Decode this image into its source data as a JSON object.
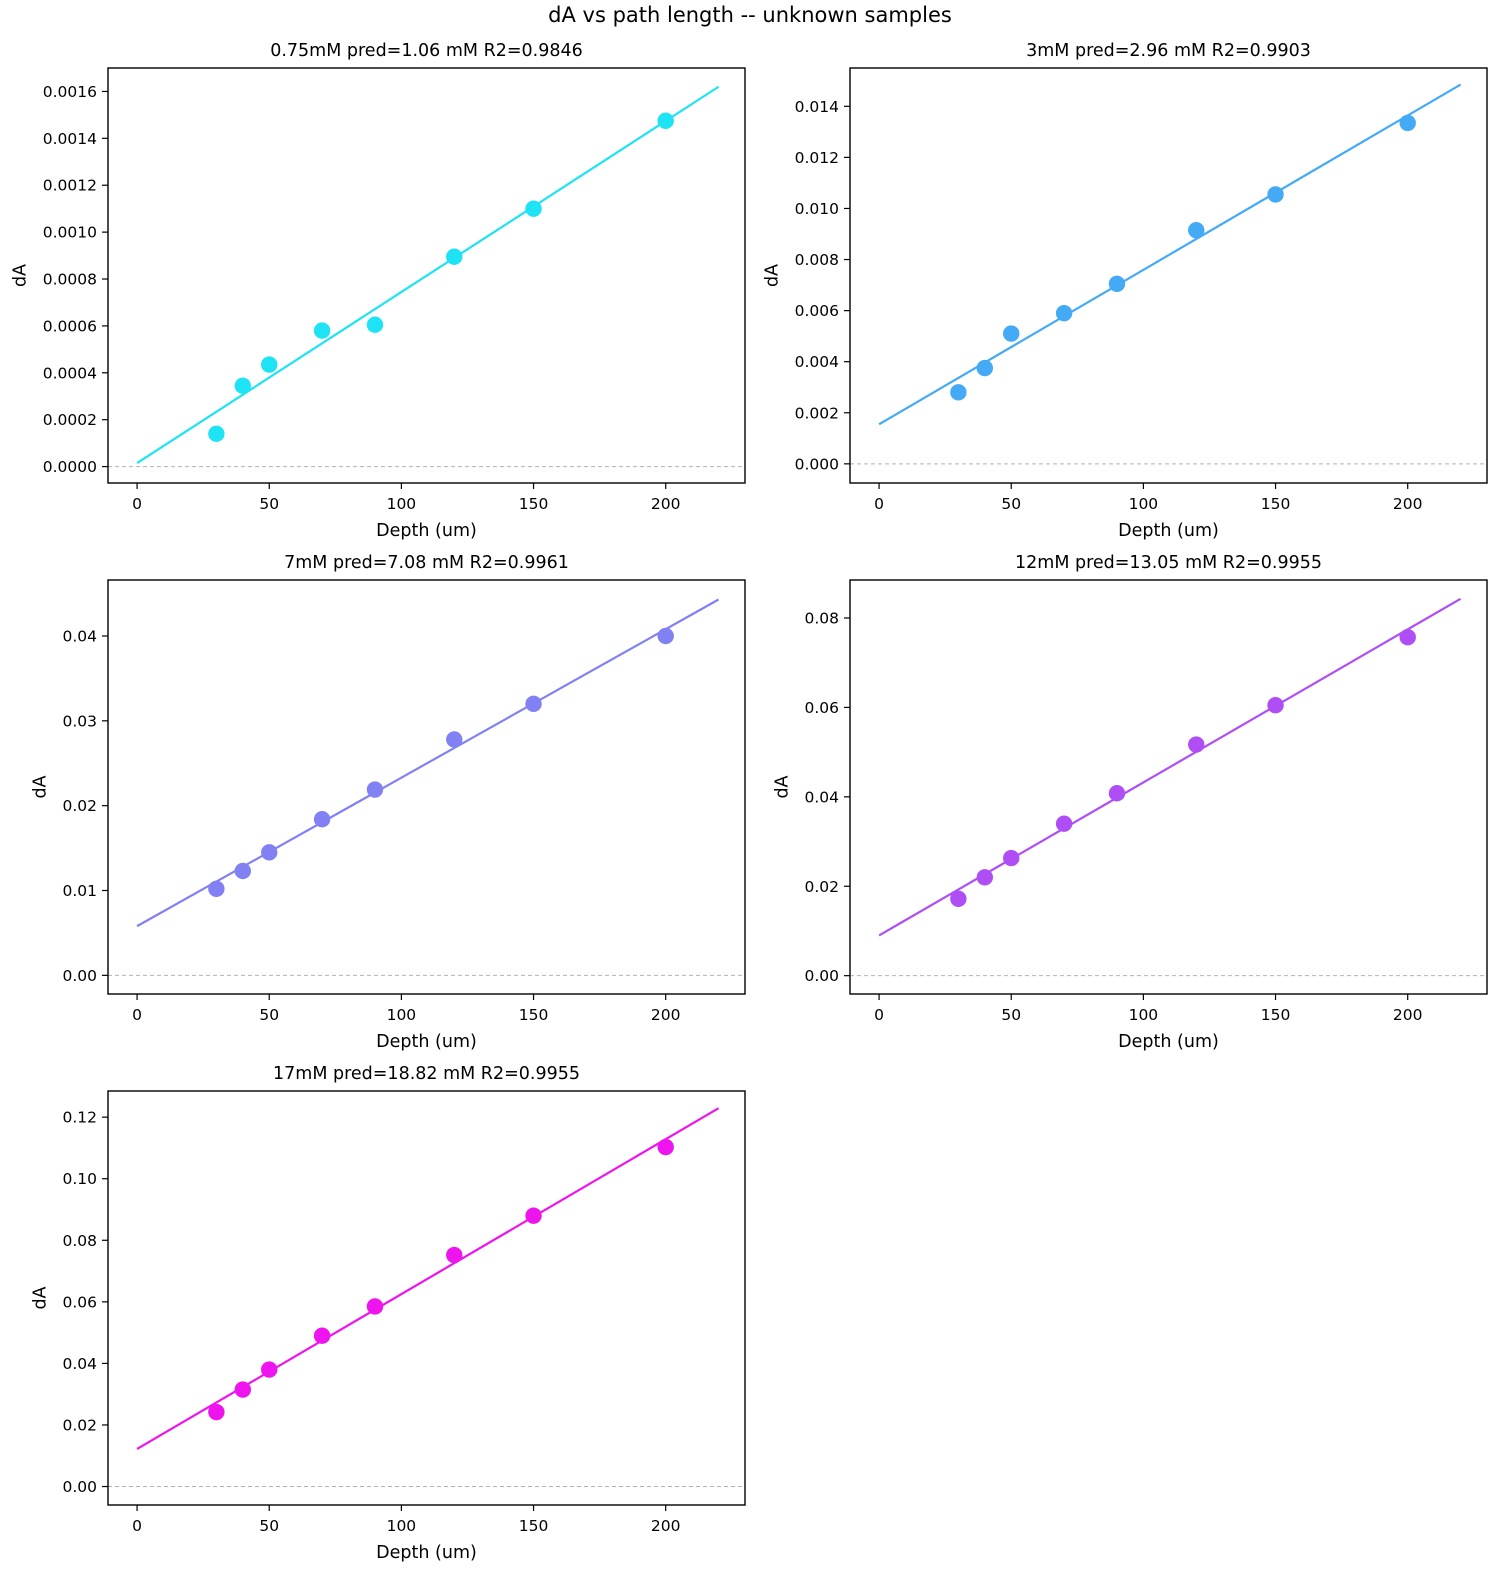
{
  "figure": {
    "title": "dA vs path length -- unknown samples"
  },
  "chart_data": [
    {
      "type": "scatter",
      "title": "0.75mM  pred=1.06 mM  R2=0.9846",
      "xlabel": "Depth (um)",
      "ylabel": "dA",
      "color": "#1ee3f5",
      "xlim": [
        -11,
        230
      ],
      "ylim": [
        -7e-05,
        0.0017
      ],
      "xticks": [
        0,
        50,
        100,
        150,
        200
      ],
      "xtick_labels": [
        "0",
        "50",
        "100",
        "150",
        "200"
      ],
      "yticks": [
        0,
        0.0002,
        0.0004,
        0.0006,
        0.0008,
        0.001,
        0.0012,
        0.0014,
        0.0016
      ],
      "ytick_labels": [
        "0.0000",
        "0.0002",
        "0.0004",
        "0.0006",
        "0.0008",
        "0.0010",
        "0.0012",
        "0.0014",
        "0.0016"
      ],
      "x": [
        30,
        40,
        50,
        70,
        90,
        120,
        150,
        200
      ],
      "y": [
        0.00014,
        0.000345,
        0.000435,
        0.00058,
        0.000605,
        0.000895,
        0.0011,
        0.001475
      ],
      "fit": {
        "x": [
          0,
          220
        ],
        "y": [
          1.5e-05,
          0.00162
        ]
      },
      "zero_line": true,
      "grid": false,
      "legend": "none"
    },
    {
      "type": "scatter",
      "title": "3mM  pred=2.96 mM  R2=0.9903",
      "xlabel": "Depth (um)",
      "ylabel": "dA",
      "color": "#44aaf6",
      "xlim": [
        -11,
        230
      ],
      "ylim": [
        -0.00075,
        0.0155
      ],
      "xticks": [
        0,
        50,
        100,
        150,
        200
      ],
      "xtick_labels": [
        "0",
        "50",
        "100",
        "150",
        "200"
      ],
      "yticks": [
        0,
        0.002,
        0.004,
        0.006,
        0.008,
        0.01,
        0.012,
        0.014
      ],
      "ytick_labels": [
        "0.000",
        "0.002",
        "0.004",
        "0.006",
        "0.008",
        "0.010",
        "0.012",
        "0.014"
      ],
      "x": [
        30,
        40,
        50,
        70,
        90,
        120,
        150,
        200
      ],
      "y": [
        0.0028,
        0.00375,
        0.0051,
        0.0059,
        0.00705,
        0.00915,
        0.01055,
        0.01335
      ],
      "fit": {
        "x": [
          0,
          220
        ],
        "y": [
          0.00155,
          0.01485
        ]
      },
      "zero_line": true,
      "grid": false,
      "legend": "none"
    },
    {
      "type": "scatter",
      "title": "7mM  pred=7.08 mM  R2=0.9961",
      "xlabel": "Depth (um)",
      "ylabel": "dA",
      "color": "#8181f4",
      "xlim": [
        -11,
        230
      ],
      "ylim": [
        -0.0022,
        0.0466
      ],
      "xticks": [
        0,
        50,
        100,
        150,
        200
      ],
      "xtick_labels": [
        "0",
        "50",
        "100",
        "150",
        "200"
      ],
      "yticks": [
        0,
        0.01,
        0.02,
        0.03,
        0.04
      ],
      "ytick_labels": [
        "0.00",
        "0.01",
        "0.02",
        "0.03",
        "0.04"
      ],
      "x": [
        30,
        40,
        50,
        70,
        90,
        120,
        150,
        200
      ],
      "y": [
        0.0102,
        0.0123,
        0.0145,
        0.0184,
        0.0219,
        0.0278,
        0.032,
        0.04
      ],
      "fit": {
        "x": [
          0,
          220
        ],
        "y": [
          0.0058,
          0.0443
        ]
      },
      "zero_line": true,
      "grid": false,
      "legend": "none"
    },
    {
      "type": "scatter",
      "title": "12mM  pred=13.05 mM  R2=0.9955",
      "xlabel": "Depth (um)",
      "ylabel": "dA",
      "color": "#b04ef5",
      "xlim": [
        -11,
        230
      ],
      "ylim": [
        -0.0041,
        0.0885
      ],
      "xticks": [
        0,
        50,
        100,
        150,
        200
      ],
      "xtick_labels": [
        "0",
        "50",
        "100",
        "150",
        "200"
      ],
      "yticks": [
        0,
        0.02,
        0.04,
        0.06,
        0.08
      ],
      "ytick_labels": [
        "0.00",
        "0.02",
        "0.04",
        "0.06",
        "0.08"
      ],
      "x": [
        30,
        40,
        50,
        70,
        90,
        120,
        150,
        200
      ],
      "y": [
        0.0172,
        0.022,
        0.0263,
        0.034,
        0.0408,
        0.0517,
        0.0605,
        0.0757
      ],
      "fit": {
        "x": [
          0,
          220
        ],
        "y": [
          0.009,
          0.0843
        ]
      },
      "zero_line": true,
      "grid": false,
      "legend": "none"
    },
    {
      "type": "scatter",
      "title": "17mM  pred=18.82 mM  R2=0.9955",
      "xlabel": "Depth (um)",
      "ylabel": "dA",
      "color": "#ee14ee",
      "xlim": [
        -11,
        230
      ],
      "ylim": [
        -0.006,
        0.1285
      ],
      "xticks": [
        0,
        50,
        100,
        150,
        200
      ],
      "xtick_labels": [
        "0",
        "50",
        "100",
        "150",
        "200"
      ],
      "yticks": [
        0,
        0.02,
        0.04,
        0.06,
        0.08,
        0.1,
        0.12
      ],
      "ytick_labels": [
        "0.00",
        "0.02",
        "0.04",
        "0.06",
        "0.08",
        "0.10",
        "0.12"
      ],
      "x": [
        30,
        40,
        50,
        70,
        90,
        120,
        150,
        200
      ],
      "y": [
        0.0242,
        0.0315,
        0.038,
        0.049,
        0.0585,
        0.0752,
        0.088,
        0.1103
      ],
      "fit": {
        "x": [
          0,
          220
        ],
        "y": [
          0.0122,
          0.1229
        ]
      },
      "zero_line": true,
      "grid": false,
      "legend": "none"
    }
  ]
}
